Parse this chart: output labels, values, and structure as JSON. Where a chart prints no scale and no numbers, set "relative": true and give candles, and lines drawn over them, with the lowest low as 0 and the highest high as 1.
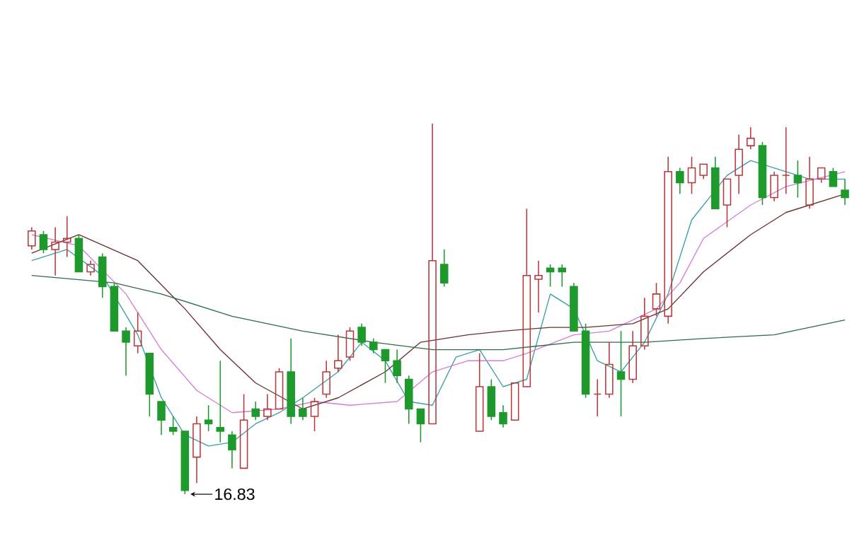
{
  "chart_data": {
    "type": "candlestick",
    "relative": true,
    "categories": [
      null,
      null,
      null,
      null,
      null,
      null,
      null,
      null,
      null,
      null,
      null,
      null,
      null,
      null,
      null,
      null,
      null,
      null,
      null,
      null,
      null,
      null,
      null,
      null,
      null,
      null,
      null,
      null,
      null,
      null,
      null,
      null,
      null,
      null,
      null,
      null,
      null,
      null,
      null,
      null,
      null,
      null,
      null,
      null,
      null,
      null,
      null,
      null,
      null,
      null,
      null,
      null,
      null,
      null,
      null,
      null,
      null,
      null,
      null,
      null,
      null,
      null,
      null,
      null,
      null,
      null,
      null,
      null,
      null,
      null
    ],
    "ohlc": [
      [
        0.67,
        0.72,
        0.66,
        0.71
      ],
      [
        0.7,
        0.71,
        0.65,
        0.66
      ],
      [
        0.66,
        0.72,
        0.59,
        0.68
      ],
      [
        0.68,
        0.75,
        0.64,
        0.69
      ],
      [
        0.69,
        0.7,
        0.6,
        0.6
      ],
      [
        0.6,
        0.63,
        0.59,
        0.62
      ],
      [
        0.64,
        0.65,
        0.53,
        0.56
      ],
      [
        0.56,
        0.57,
        0.44,
        0.44
      ],
      [
        0.44,
        0.45,
        0.32,
        0.41
      ],
      [
        0.4,
        0.49,
        0.38,
        0.44
      ],
      [
        0.38,
        0.38,
        0.21,
        0.27
      ],
      [
        0.25,
        0.25,
        0.16,
        0.2
      ],
      [
        0.18,
        0.21,
        0.16,
        0.17
      ],
      [
        0.17,
        0.17,
        0,
        0.01
      ],
      [
        0.1,
        0.21,
        0.03,
        0.19
      ],
      [
        0.2,
        0.24,
        0.17,
        0.19
      ],
      [
        0.18,
        0.36,
        0.14,
        0.17
      ],
      [
        0.16,
        0.17,
        0.07,
        0.12
      ],
      [
        0.07,
        0.27,
        0.07,
        0.2
      ],
      [
        0.23,
        0.25,
        0.2,
        0.21
      ],
      [
        0.21,
        0.27,
        0.2,
        0.23
      ],
      [
        0.23,
        0.34,
        0.23,
        0.33
      ],
      [
        0.33,
        0.42,
        0.19,
        0.21
      ],
      [
        0.23,
        0.26,
        0.2,
        0.21
      ],
      [
        0.21,
        0.26,
        0.17,
        0.25
      ],
      [
        0.27,
        0.36,
        0.26,
        0.33
      ],
      [
        0.34,
        0.43,
        0.33,
        0.36
      ],
      [
        0.37,
        0.45,
        0.36,
        0.44
      ],
      [
        0.45,
        0.46,
        0.4,
        0.41
      ],
      [
        0.41,
        0.42,
        0.38,
        0.39
      ],
      [
        0.39,
        0.39,
        0.3,
        0.36
      ],
      [
        0.36,
        0.39,
        0.3,
        0.32
      ],
      [
        0.31,
        0.32,
        0.19,
        0.23
      ],
      [
        0.23,
        0.23,
        0.14,
        0.19
      ],
      [
        0.19,
        1,
        0.19,
        0.63
      ],
      [
        0.62,
        0.66,
        0.56,
        0.57
      ],
      null,
      null,
      [
        0.17,
        0.38,
        0.17,
        0.29
      ],
      [
        0.29,
        0.31,
        0.2,
        0.21
      ],
      [
        0.22,
        0.24,
        0.18,
        0.19
      ],
      [
        0.2,
        0.3,
        0.2,
        0.3
      ],
      [
        0.29,
        0.77,
        0.29,
        0.59
      ],
      [
        0.58,
        0.63,
        0.49,
        0.59
      ],
      [
        0.61,
        0.62,
        0.56,
        0.6
      ],
      [
        0.61,
        0.62,
        0.56,
        0.6
      ],
      [
        0.56,
        0.57,
        0.44,
        0.44
      ],
      [
        0.44,
        0.46,
        0.26,
        0.27
      ],
      [
        0.27,
        0.31,
        0.21,
        0.27
      ],
      [
        0.27,
        0.41,
        0.26,
        0.35
      ],
      [
        0.33,
        0.44,
        0.21,
        0.31
      ],
      [
        0.31,
        0.44,
        0.3,
        0.4
      ],
      [
        0.4,
        0.53,
        0.39,
        0.48
      ],
      [
        0.5,
        0.57,
        0.48,
        0.54
      ],
      [
        0.48,
        0.91,
        0.46,
        0.87
      ],
      [
        0.87,
        0.88,
        0.81,
        0.84
      ],
      [
        0.84,
        0.91,
        0.81,
        0.88
      ],
      [
        0.86,
        0.89,
        0.85,
        0.89
      ],
      [
        0.88,
        0.91,
        0.77,
        0.77
      ],
      [
        0.78,
        0.85,
        0.72,
        0.85
      ],
      [
        0.86,
        0.97,
        0.81,
        0.93
      ],
      [
        0.94,
        0.99,
        0.93,
        0.96
      ],
      [
        0.94,
        0.95,
        0.78,
        0.8
      ],
      [
        0.8,
        0.87,
        0.79,
        0.86
      ],
      [
        0.86,
        0.99,
        0.81,
        0.86
      ],
      [
        0.86,
        0.9,
        0.8,
        0.84
      ],
      [
        0.78,
        0.91,
        0.77,
        0.85
      ],
      [
        0.85,
        0.88,
        0.84,
        0.88
      ],
      [
        0.87,
        0.88,
        0.83,
        0.83
      ],
      [
        0.82,
        0.85,
        0.78,
        0.8
      ]
    ],
    "series": [
      {
        "type": "line",
        "color": "#3a9fa8",
        "values": [
          0.63,
          null,
          null,
          0.66,
          null,
          null,
          0.59,
          null,
          null,
          0.43,
          null,
          0.26,
          null,
          0.16,
          null,
          0.13,
          null,
          0.14,
          null,
          0.19,
          null,
          0.22,
          null,
          0.26,
          null,
          null,
          0.33,
          null,
          0.41,
          null,
          0.36,
          null,
          0.25,
          null,
          0.24,
          null,
          0.37,
          null,
          0.39,
          null,
          0.29,
          null,
          0.31,
          null,
          0.54,
          null,
          0.5,
          null,
          0.36,
          null,
          0.33,
          null,
          0.41,
          null,
          0.54,
          null,
          0.74,
          null,
          null,
          0.86,
          null,
          0.9,
          null,
          0.88,
          null,
          null,
          0.85,
          null,
          null,
          0.85
        ]
      },
      {
        "type": "line",
        "color": "#d47fd4",
        "values": [
          0.7,
          null,
          null,
          null,
          0.67,
          null,
          null,
          null,
          0.54,
          null,
          null,
          0.39,
          null,
          null,
          0.28,
          null,
          null,
          0.22,
          null,
          null,
          null,
          0.23,
          null,
          null,
          0.25,
          null,
          null,
          0.24,
          null,
          null,
          null,
          0.25,
          null,
          null,
          0.33,
          null,
          null,
          0.36,
          null,
          null,
          0.36,
          null,
          0.38,
          null,
          null,
          null,
          0.43,
          null,
          null,
          0.44,
          null,
          null,
          null,
          0.5,
          null,
          0.57,
          null,
          0.69,
          null,
          null,
          null,
          0.78,
          null,
          null,
          0.83,
          null,
          null,
          null,
          null,
          0.87
        ]
      },
      {
        "type": "line",
        "color": "#6a3030",
        "values": [
          0.65,
          null,
          null,
          null,
          0.7,
          null,
          null,
          null,
          null,
          0.63,
          null,
          null,
          null,
          0.5,
          null,
          null,
          0.39,
          null,
          null,
          0.3,
          null,
          null,
          null,
          0.23,
          null,
          null,
          0.26,
          null,
          null,
          null,
          0.33,
          null,
          null,
          0.41,
          null,
          null,
          null,
          0.43,
          null,
          null,
          0.44,
          null,
          null,
          null,
          0.45,
          null,
          null,
          0.45,
          null,
          null,
          null,
          0.46,
          null,
          null,
          0.5,
          null,
          null,
          0.6,
          null,
          null,
          null,
          0.7,
          null,
          null,
          0.76,
          null,
          null,
          null,
          null,
          0.81
        ]
      },
      {
        "type": "line",
        "color": "#2f6b4a",
        "values": [
          0.59,
          null,
          null,
          null,
          null,
          null,
          null,
          0.57,
          null,
          null,
          null,
          0.54,
          null,
          null,
          null,
          null,
          null,
          0.48,
          null,
          null,
          null,
          null,
          null,
          0.44,
          null,
          null,
          null,
          null,
          null,
          0.41,
          null,
          null,
          null,
          null,
          0.39,
          null,
          null,
          null,
          null,
          null,
          0.39,
          null,
          null,
          null,
          null,
          null,
          0.41,
          null,
          null,
          null,
          null,
          null,
          0.41,
          null,
          null,
          null,
          null,
          0.42,
          null,
          null,
          null,
          null,
          null,
          0.43,
          null,
          null,
          null,
          null,
          null,
          0.47
        ]
      }
    ],
    "annotations": [
      "16.83"
    ]
  }
}
